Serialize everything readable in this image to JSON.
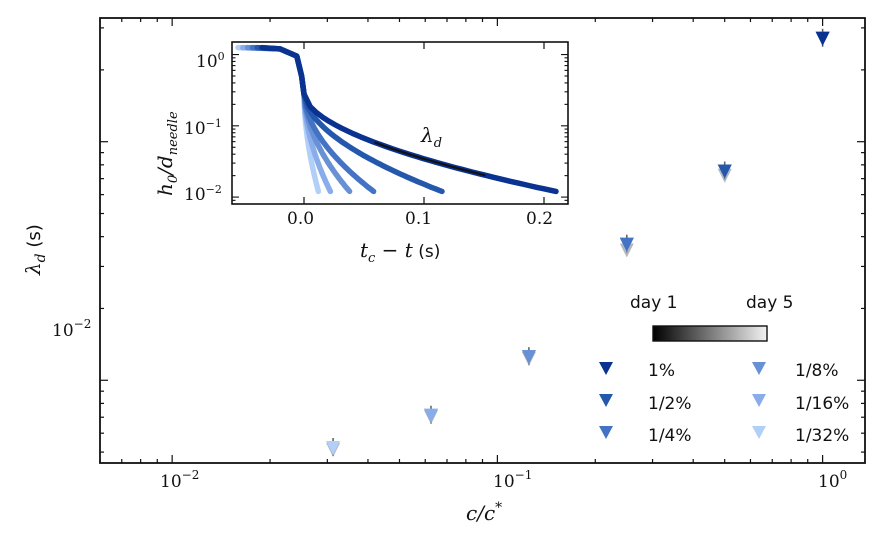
{
  "chart_data": [
    {
      "type": "scatter",
      "xlabel": "c/c*",
      "ylabel": "λ_d (s)",
      "xscale": "log",
      "yscale": "log",
      "xlim": [
        0.006,
        1.35
      ],
      "ylim": [
        0.0045,
        0.33
      ],
      "x_tick_labels": [
        "10^-2",
        "10^-1",
        "10^0"
      ],
      "y_tick_labels": [
        "10^-2"
      ],
      "marker": "triangle-down",
      "series": [
        {
          "name": "1%",
          "color": "#0a3391",
          "x": 1.0,
          "values": [
            0.27
          ]
        },
        {
          "name": "1/2%",
          "color": "#2458ad",
          "x": 0.5,
          "values": [
            0.075,
            0.072
          ]
        },
        {
          "name": "1/4%",
          "color": "#4472c4",
          "x": 0.25,
          "values": [
            0.037,
            0.035
          ]
        },
        {
          "name": "1/8%",
          "color": "#6890d4",
          "x": 0.125,
          "values": [
            0.0125,
            0.0123
          ]
        },
        {
          "name": "1/16%",
          "color": "#89acea",
          "x": 0.0625,
          "values": [
            0.0071,
            0.007
          ]
        },
        {
          "name": "1/32%",
          "color": "#b2cff8",
          "x": 0.03125,
          "values": [
            0.0052,
            0.0051
          ]
        }
      ],
      "colorbar": {
        "left_label": "day 1",
        "right_label": "day 5"
      },
      "legend": {
        "placement": "lower-right",
        "columns": 2
      }
    },
    {
      "type": "line",
      "xlabel": "t_c − t (s)",
      "ylabel": "h_0/d_needle",
      "xlim": [
        -0.06,
        0.22
      ],
      "ylim": [
        0.008,
        1.5
      ],
      "yscale": "log",
      "x_tick_labels": [
        "0.0",
        "0.1",
        "0.2"
      ],
      "y_tick_labels": [
        "10^-2",
        "10^-1",
        "10^0"
      ],
      "annotation": "λ_d",
      "curves": [
        {
          "name": "1%",
          "color": "#0a3391",
          "x_end": 0.21
        },
        {
          "name": "1/2%",
          "color": "#2458ad",
          "x_end": 0.115
        },
        {
          "name": "1/4%",
          "color": "#4472c4",
          "x_end": 0.058
        },
        {
          "name": "1/8%",
          "color": "#6890d4",
          "x_end": 0.038
        },
        {
          "name": "1/16%",
          "color": "#89acea",
          "x_end": 0.022
        },
        {
          "name": "1/32%",
          "color": "#b2cff8",
          "x_end": 0.012
        }
      ]
    }
  ],
  "text": {
    "x_tick_1": "10",
    "x_tick_1_exp": "−2",
    "x_tick_2": "10",
    "x_tick_2_exp": "−1",
    "x_tick_3": "10",
    "x_tick_3_exp": "0",
    "y_tick_1": "10",
    "y_tick_1_exp": "−2",
    "xlabel_main": "c/c",
    "xlabel_main_sup": "*",
    "ylabel_main_sym": "λ",
    "ylabel_main_sub": "d",
    "ylabel_main_unit": " (s)",
    "inset_xlabel_a": "t",
    "inset_xlabel_a_sub": "c",
    "inset_xlabel_b": " − t",
    "inset_xlabel_unit": " (s)",
    "inset_ylabel_a": "h",
    "inset_ylabel_a_sub": "0",
    "inset_ylabel_b": "/d",
    "inset_ylabel_b_sub": "needle",
    "inset_annot_sym": "λ",
    "inset_annot_sub": "d",
    "inset_x_tick_1": "0.0",
    "inset_x_tick_2": "0.1",
    "inset_x_tick_3": "0.2",
    "inset_y_tick_1": "10",
    "inset_y_tick_1_exp": "0",
    "inset_y_tick_2": "10",
    "inset_y_tick_2_exp": "−1",
    "inset_y_tick_3": "10",
    "inset_y_tick_3_exp": "−2",
    "colorbar_left": "day 1",
    "colorbar_right": "day 5",
    "legend_1": "1%",
    "legend_2": "1/2%",
    "legend_3": "1/4%",
    "legend_4": "1/8%",
    "legend_5": "1/16%",
    "legend_6": "1/32%"
  }
}
